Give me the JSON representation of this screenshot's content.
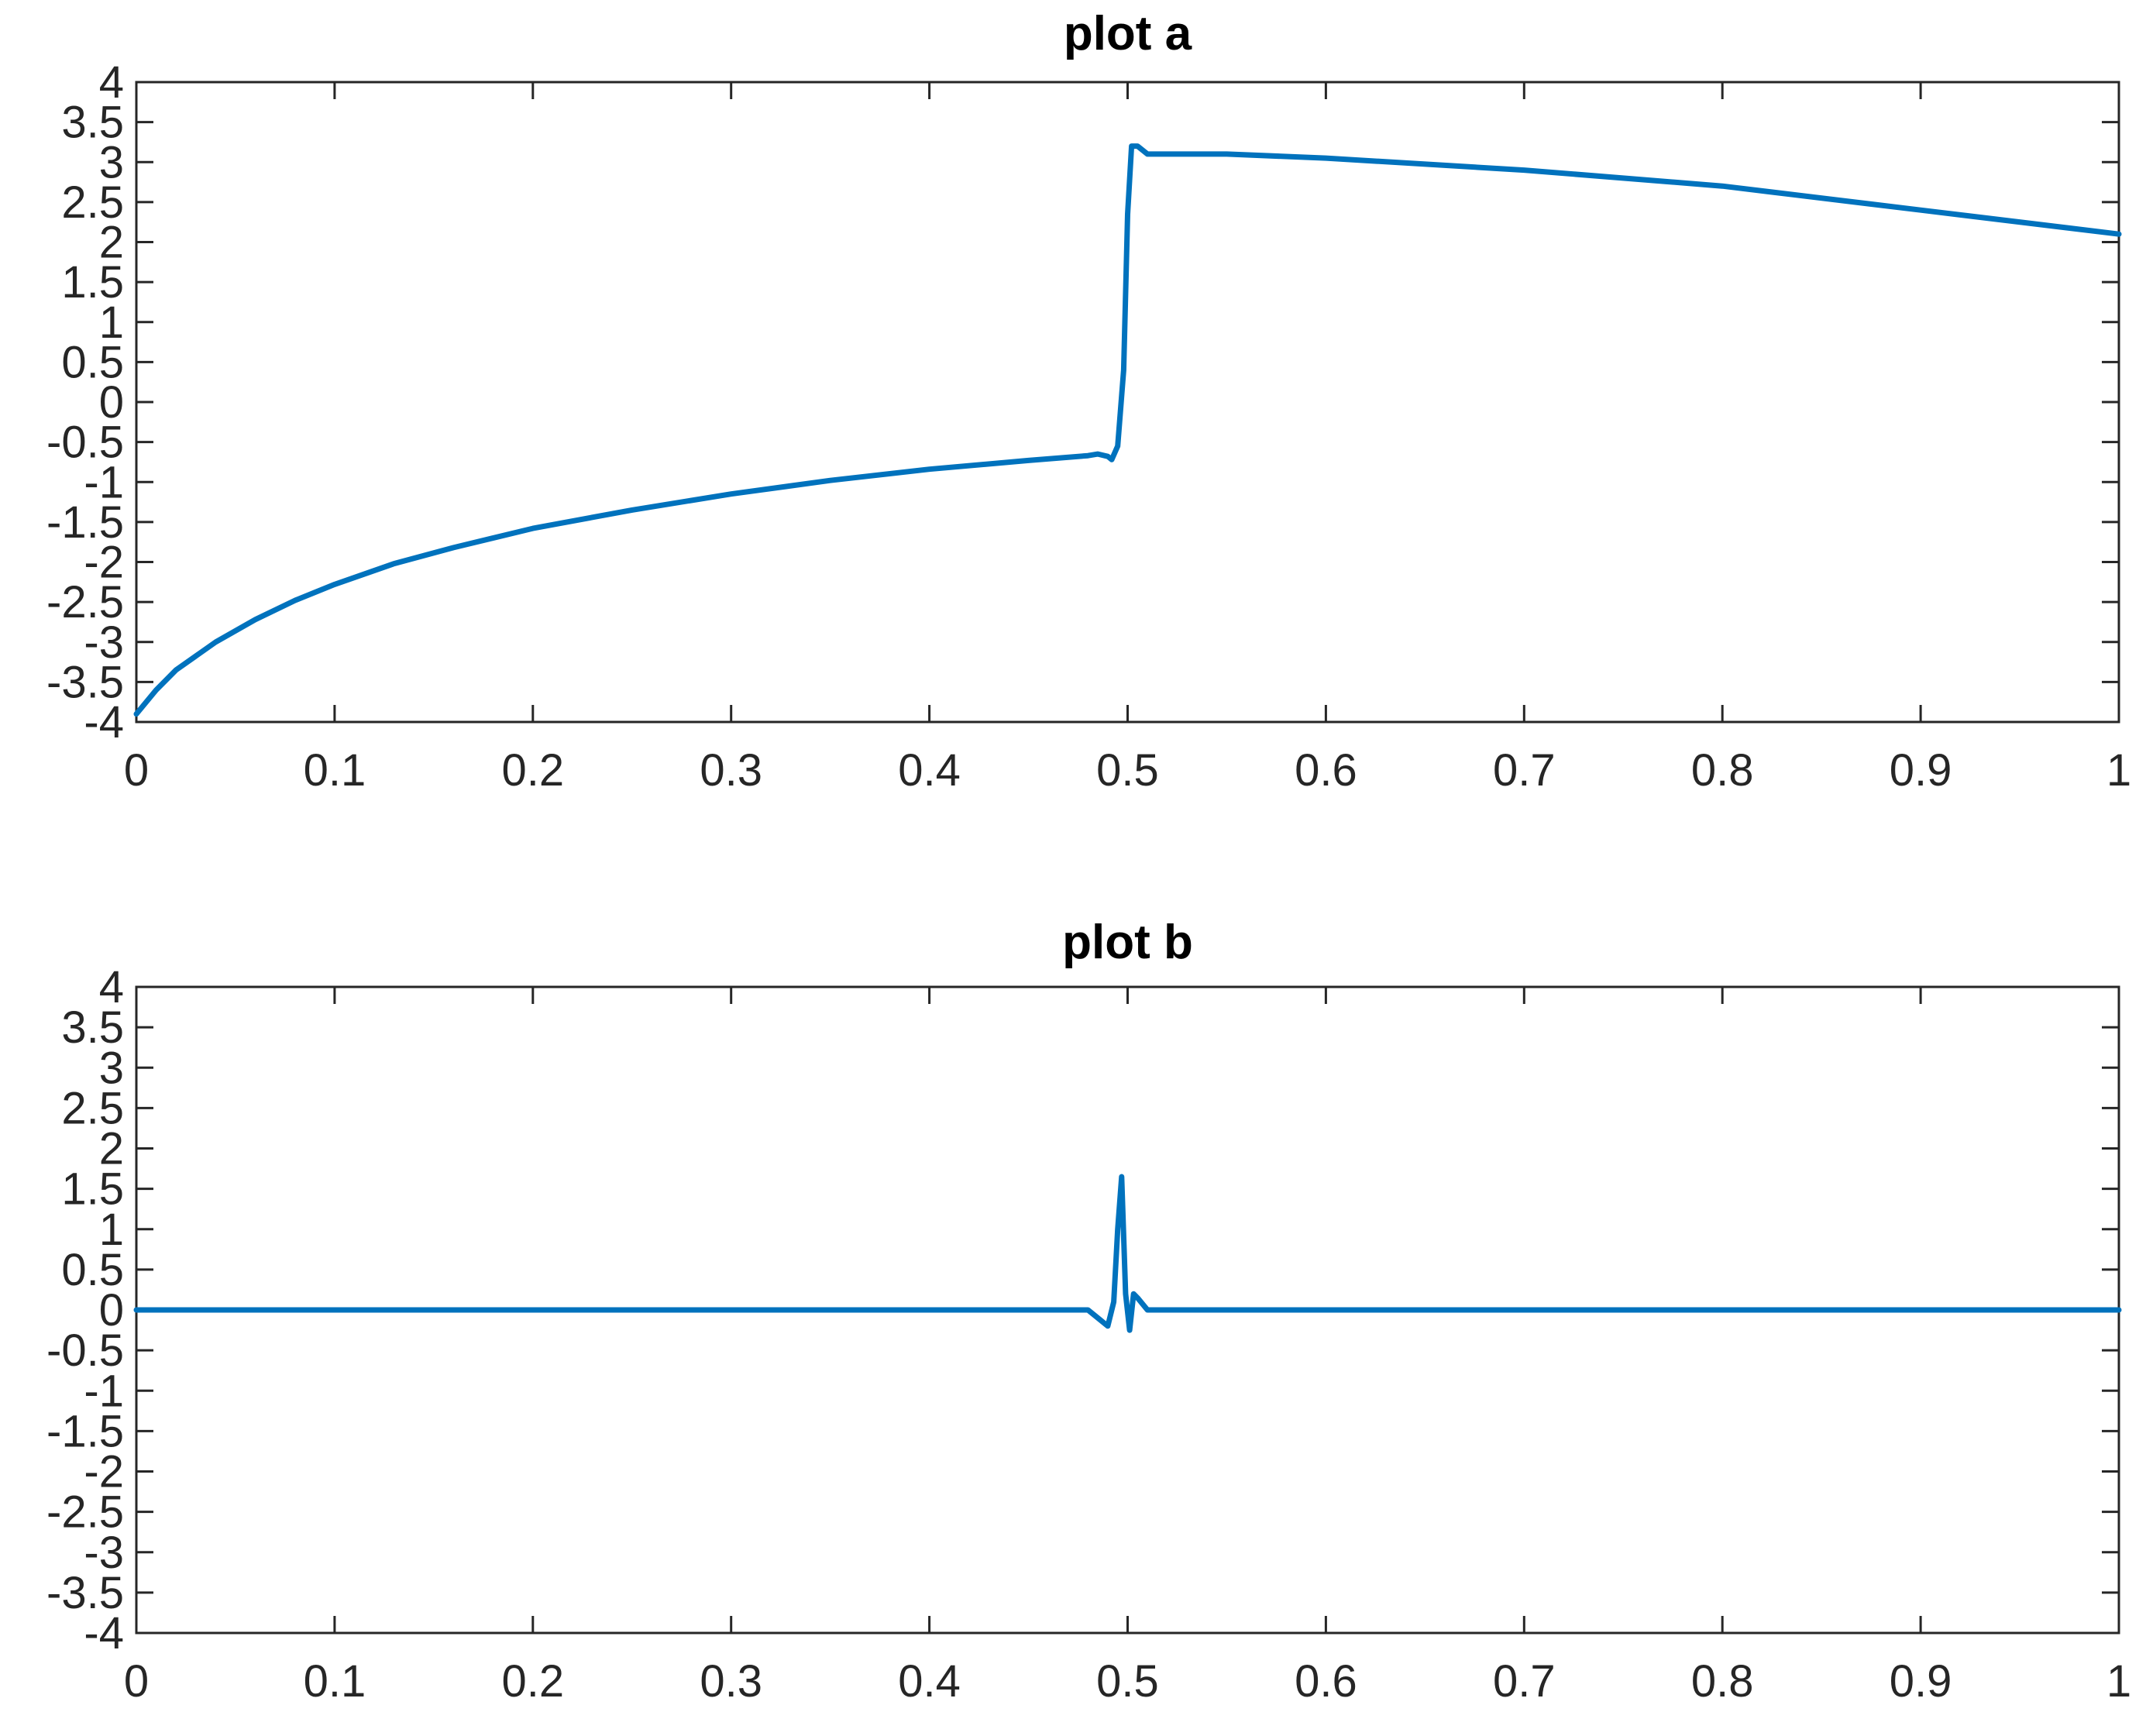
{
  "colors": {
    "series": "#0072BD",
    "axis": "#262626",
    "background": "#ffffff"
  },
  "chart_data": [
    {
      "type": "line",
      "title": "plot a",
      "xlabel": "",
      "ylabel": "",
      "xlim": [
        0,
        1
      ],
      "ylim": [
        -4,
        4
      ],
      "grid": false,
      "xticks": [
        "0",
        "0.1",
        "0.2",
        "0.3",
        "0.4",
        "0.5",
        "0.6",
        "0.7",
        "0.8",
        "0.9",
        "1"
      ],
      "yticks": [
        "-4",
        "-3.5",
        "-3",
        "-2.5",
        "-2",
        "-1.5",
        "-1",
        "-0.5",
        "0",
        "0.5",
        "1",
        "1.5",
        "2",
        "2.5",
        "3",
        "3.5",
        "4"
      ],
      "series": [
        {
          "x": [
            0,
            0.01,
            0.02,
            0.04,
            0.06,
            0.08,
            0.1,
            0.13,
            0.16,
            0.2,
            0.25,
            0.3,
            0.35,
            0.4,
            0.45,
            0.48,
            0.485,
            0.49,
            0.492,
            0.495,
            0.498,
            0.5,
            0.502,
            0.505,
            0.51,
            0.55,
            0.6,
            0.7,
            0.8,
            0.9,
            1.0
          ],
          "y": [
            -3.9,
            -3.6,
            -3.35,
            -3.0,
            -2.72,
            -2.48,
            -2.28,
            -2.02,
            -1.82,
            -1.58,
            -1.35,
            -1.15,
            -0.98,
            -0.84,
            -0.73,
            -0.67,
            -0.65,
            -0.68,
            -0.72,
            -0.55,
            0.4,
            2.35,
            3.2,
            3.2,
            3.1,
            3.1,
            3.05,
            2.9,
            2.7,
            2.4,
            2.1
          ]
        }
      ]
    },
    {
      "type": "line",
      "title": "plot b",
      "xlabel": "",
      "ylabel": "",
      "xlim": [
        0,
        1
      ],
      "ylim": [
        -4,
        4
      ],
      "grid": false,
      "xticks": [
        "0",
        "0.1",
        "0.2",
        "0.3",
        "0.4",
        "0.5",
        "0.6",
        "0.7",
        "0.8",
        "0.9",
        "1"
      ],
      "yticks": [
        "-4",
        "-3.5",
        "-3",
        "-2.5",
        "-2",
        "-1.5",
        "-1",
        "-0.5",
        "0",
        "0.5",
        "1",
        "1.5",
        "2",
        "2.5",
        "3",
        "3.5",
        "4"
      ],
      "series": [
        {
          "x": [
            0,
            0.48,
            0.485,
            0.49,
            0.493,
            0.495,
            0.497,
            0.499,
            0.501,
            0.503,
            0.505,
            0.51,
            1.0
          ],
          "y": [
            0,
            0,
            -0.1,
            -0.2,
            0.1,
            1.0,
            1.65,
            0.2,
            -0.25,
            0.2,
            0.15,
            0.0,
            0
          ]
        }
      ]
    }
  ]
}
